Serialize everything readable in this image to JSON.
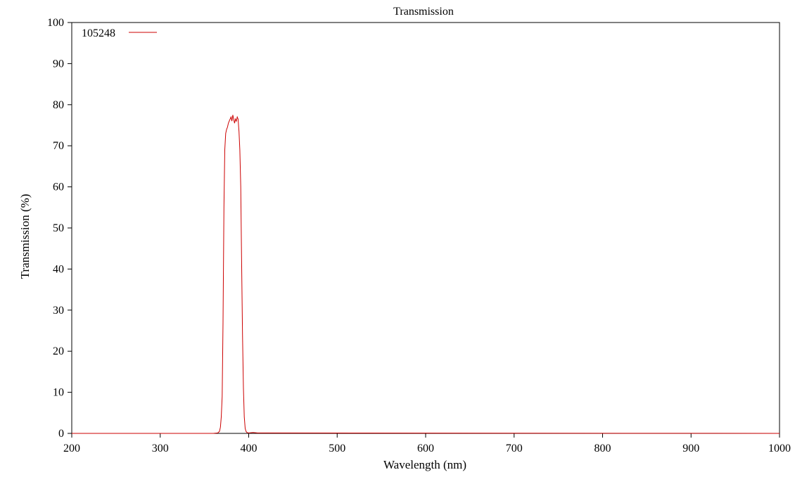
{
  "chart_data": {
    "type": "line",
    "title": "Transmission",
    "xlabel": "Wavelength (nm)",
    "ylabel": "Transmission (%)",
    "xlim": [
      200,
      1000
    ],
    "ylim": [
      0,
      100
    ],
    "xticks": [
      200,
      300,
      400,
      500,
      600,
      700,
      800,
      900,
      1000
    ],
    "yticks": [
      0,
      10,
      20,
      30,
      40,
      50,
      60,
      70,
      80,
      90,
      100
    ],
    "grid": false,
    "legend_position": "top-left",
    "series": [
      {
        "name": "105248",
        "color": "#cc0000",
        "x": [
          200,
          360,
          365,
          367,
          368,
          369,
          370,
          371,
          372,
          373,
          374,
          375,
          376,
          377,
          378,
          379,
          380,
          381,
          382,
          383,
          384,
          385,
          386,
          387,
          388,
          389,
          390,
          391,
          392,
          393,
          394,
          395,
          396,
          397,
          398,
          400,
          405,
          410,
          1000
        ],
        "y": [
          0,
          0,
          0.1,
          0.5,
          1.5,
          4,
          9,
          27,
          55,
          69,
          73,
          74,
          74.5,
          75.5,
          76,
          76.5,
          77,
          76,
          77.5,
          76.5,
          75.5,
          76.5,
          76,
          77,
          76.5,
          73.5,
          69,
          60,
          42,
          24,
          11,
          4,
          1.2,
          0.5,
          0.2,
          0.1,
          0.2,
          0.1,
          0
        ]
      }
    ]
  }
}
